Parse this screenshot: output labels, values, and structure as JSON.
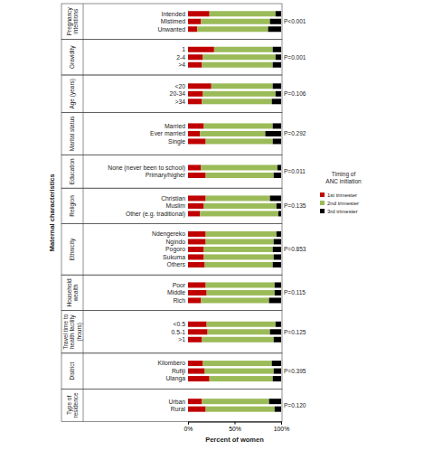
{
  "chart_data": {
    "type": "bar",
    "orientation": "horizontal",
    "stacked": true,
    "xlabel": "Percent of women",
    "ylabel": "Maternal characteristics",
    "xlim": [
      0,
      100
    ],
    "xticks": [
      {
        "value": 0,
        "label": "0%"
      },
      {
        "value": 50,
        "label": "50%"
      },
      {
        "value": 100,
        "label": "100%"
      }
    ],
    "legend": "right",
    "legend_title": [
      "Timing of",
      "ANC initiation"
    ],
    "groups": [
      {
        "label": [
          "Pregnancy",
          "intentions"
        ],
        "annotation": "P<0.001",
        "categories": [
          "Intended",
          "Mistimed",
          "Unwanted"
        ]
      },
      {
        "label": [
          "Gravidity"
        ],
        "annotation": "P=0.001",
        "categories": [
          "1",
          "2-4",
          ">4"
        ]
      },
      {
        "label": [
          "Age (years)"
        ],
        "annotation": "P=0.106",
        "categories": [
          "<20",
          "20-34",
          ">34"
        ]
      },
      {
        "label": [
          "Marital status"
        ],
        "annotation": "P=0.292",
        "categories": [
          "Married",
          "Ever married",
          "Single"
        ]
      },
      {
        "label": [
          "Education"
        ],
        "annotation": "P=0.011",
        "categories": [
          "None (never been to school)",
          "Primary/higher"
        ]
      },
      {
        "label": [
          "Religion"
        ],
        "annotation": "P=0.135",
        "categories": [
          "Christian",
          "Muslim",
          "Other (e.g. traditional)"
        ]
      },
      {
        "label": [
          "Ethnicity"
        ],
        "annotation": "P=0.853",
        "categories": [
          "Ndengereko",
          "Ngindo",
          "Pogoro",
          "Sukuma",
          "Others"
        ]
      },
      {
        "label": [
          "Household",
          "wealth"
        ],
        "annotation": "P=0.115",
        "categories": [
          "Poor",
          "Middle",
          "Rich"
        ]
      },
      {
        "label": [
          "Travel time to",
          "health facility",
          "(hours)"
        ],
        "annotation": "P=0.125",
        "categories": [
          "<0.5",
          "0.5-1",
          ">1"
        ]
      },
      {
        "label": [
          "District"
        ],
        "annotation": "P=0.395",
        "categories": [
          "Kilombero",
          "Rufiji",
          "Ulanga"
        ]
      },
      {
        "label": [
          "Type of",
          "residence"
        ],
        "annotation": "P=0.120",
        "categories": [
          "Urban",
          "Rural"
        ]
      }
    ],
    "series": [
      {
        "name": "1st trimester",
        "color": "#c00000",
        "values": [
          23,
          14,
          10,
          28,
          16,
          15,
          25,
          16,
          15,
          17,
          13,
          19,
          14,
          19,
          19,
          17,
          13,
          19,
          19,
          17,
          17,
          18,
          19,
          20,
          14,
          20,
          21,
          15,
          16,
          18,
          23,
          15,
          19
        ]
      },
      {
        "name": "2nd trimester",
        "color": "#9bbb59",
        "values": [
          71,
          74,
          76,
          63,
          78,
          76,
          66,
          78,
          75,
          74,
          70,
          72,
          82,
          73,
          69,
          78,
          84,
          76,
          73,
          74,
          75,
          73,
          74,
          73,
          73,
          74,
          67,
          77,
          74,
          74,
          68,
          72,
          74
        ]
      },
      {
        "name": "3rd trimester",
        "color": "#000000",
        "values": [
          6,
          12,
          14,
          9,
          6,
          9,
          9,
          6,
          10,
          9,
          17,
          9,
          4,
          8,
          12,
          5,
          3,
          5,
          8,
          9,
          8,
          9,
          7,
          7,
          13,
          6,
          12,
          8,
          10,
          8,
          9,
          13,
          7
        ]
      }
    ]
  }
}
